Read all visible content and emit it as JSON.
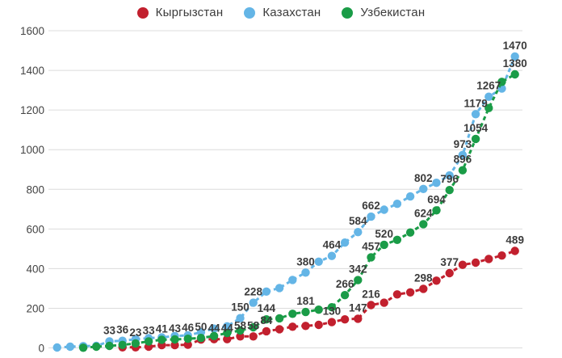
{
  "chart_data": {
    "type": "line",
    "title": "",
    "line_style": "dashed",
    "grid": true,
    "legend_position": "top",
    "x_axis": {
      "labels_visible": false,
      "point_count": 36
    },
    "y_axis": {
      "min": 0,
      "max": 1600,
      "step": 200,
      "ticks": [
        0,
        200,
        400,
        600,
        800,
        1000,
        1200,
        1400,
        1600
      ]
    },
    "colors": {
      "grid": "#dcdcdc",
      "tick_text": "#444444",
      "annotation_text": "#3b3b3b"
    },
    "series": [
      {
        "name": "Кыргызстан",
        "color": "#c2202e",
        "start_index": 5,
        "values": [
          3,
          3,
          6,
          14,
          14,
          16,
          42,
          44,
          44,
          58,
          58,
          84,
          94,
          107,
          111,
          116,
          130,
          144,
          147,
          216,
          228,
          270,
          280,
          298,
          339,
          377,
          419,
          430,
          449,
          466,
          489
        ],
        "annotations": [
          {
            "index": 12,
            "text": "44"
          },
          {
            "index": 13,
            "text": "44"
          },
          {
            "index": 14,
            "text": "58"
          },
          {
            "index": 15,
            "text": "58"
          },
          {
            "index": 16,
            "text": "84"
          },
          {
            "index": 21,
            "text": "130"
          },
          {
            "index": 23,
            "text": "147"
          },
          {
            "index": 24,
            "text": "216"
          },
          {
            "index": 28,
            "text": "298"
          },
          {
            "index": 30,
            "text": "377"
          },
          {
            "index": 35,
            "text": "489"
          }
        ]
      },
      {
        "name": "Казахстан",
        "color": "#64b5e6",
        "start_index": 0,
        "values": [
          2,
          6,
          9,
          10,
          33,
          36,
          44,
          49,
          53,
          60,
          63,
          79,
          97,
          109,
          150,
          228,
          284,
          302,
          343,
          380,
          435,
          464,
          531,
          584,
          662,
          697,
          727,
          764,
          802,
          833,
          870,
          973,
          1179,
          1267,
          1308,
          1470
        ],
        "annotations": [
          {
            "index": 4,
            "text": "33"
          },
          {
            "index": 5,
            "text": "36"
          },
          {
            "index": 14,
            "text": "150"
          },
          {
            "index": 15,
            "text": "228"
          },
          {
            "index": 19,
            "text": "380"
          },
          {
            "index": 21,
            "text": "464"
          },
          {
            "index": 23,
            "text": "584"
          },
          {
            "index": 24,
            "text": "662"
          },
          {
            "index": 28,
            "text": "802"
          },
          {
            "index": 31,
            "text": "973"
          },
          {
            "index": 32,
            "text": "1179"
          },
          {
            "index": 33,
            "text": "1267"
          },
          {
            "index": 35,
            "text": "1470"
          }
        ]
      },
      {
        "name": "Узбекистан",
        "color": "#1a9c47",
        "start_index": 2,
        "values": [
          1,
          6,
          10,
          15,
          23,
          33,
          41,
          43,
          46,
          50,
          60,
          75,
          88,
          104,
          144,
          149,
          172,
          181,
          193,
          205,
          266,
          342,
          457,
          520,
          545,
          582,
          624,
          694,
          796,
          896,
          1054,
          1210,
          1342,
          1380
        ],
        "annotations": [
          {
            "index": 6,
            "text": "23"
          },
          {
            "index": 7,
            "text": "33"
          },
          {
            "index": 8,
            "text": "41"
          },
          {
            "index": 9,
            "text": "43"
          },
          {
            "index": 10,
            "text": "46"
          },
          {
            "index": 11,
            "text": "50"
          },
          {
            "index": 16,
            "text": "144"
          },
          {
            "index": 19,
            "text": "181"
          },
          {
            "index": 22,
            "text": "266"
          },
          {
            "index": 23,
            "text": "342"
          },
          {
            "index": 24,
            "text": "457"
          },
          {
            "index": 25,
            "text": "520"
          },
          {
            "index": 28,
            "text": "624"
          },
          {
            "index": 29,
            "text": "694"
          },
          {
            "index": 30,
            "text": "796"
          },
          {
            "index": 31,
            "text": "896"
          },
          {
            "index": 32,
            "text": "1054"
          },
          {
            "index": 35,
            "text": "1380"
          }
        ]
      }
    ]
  }
}
